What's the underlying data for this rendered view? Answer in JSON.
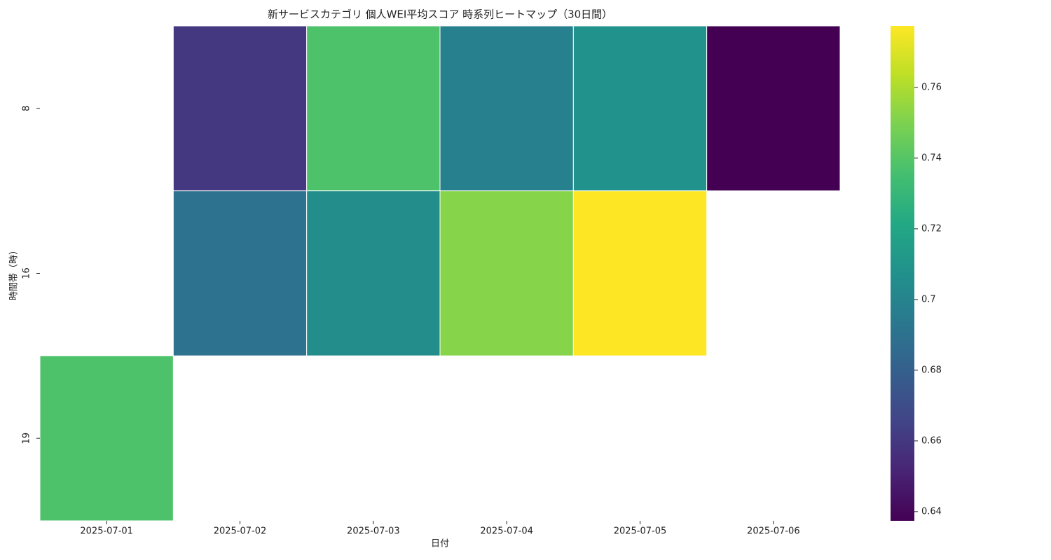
{
  "chart_data": {
    "type": "heatmap",
    "title": "新サービスカテゴリ 個人WEI平均スコア 時系列ヒートマップ（30日間）",
    "x_label": "日付",
    "y_label": "時間帯（時）",
    "x": [
      "2025-07-01",
      "2025-07-02",
      "2025-07-03",
      "2025-07-04",
      "2025-07-05",
      "2025-07-06"
    ],
    "y": [
      "8",
      "16",
      "19"
    ],
    "values": [
      [
        null,
        0.66,
        0.738,
        0.698,
        0.708,
        0.6374
      ],
      [
        null,
        0.69,
        0.705,
        0.752,
        0.7774,
        null
      ],
      [
        0.738,
        null,
        null,
        null,
        null,
        null
      ]
    ],
    "colormap": "viridis",
    "clim": [
      0.6374,
      0.7774
    ],
    "cticks": [
      0.64,
      0.66,
      0.68,
      0.7,
      0.72,
      0.74,
      0.76
    ]
  }
}
